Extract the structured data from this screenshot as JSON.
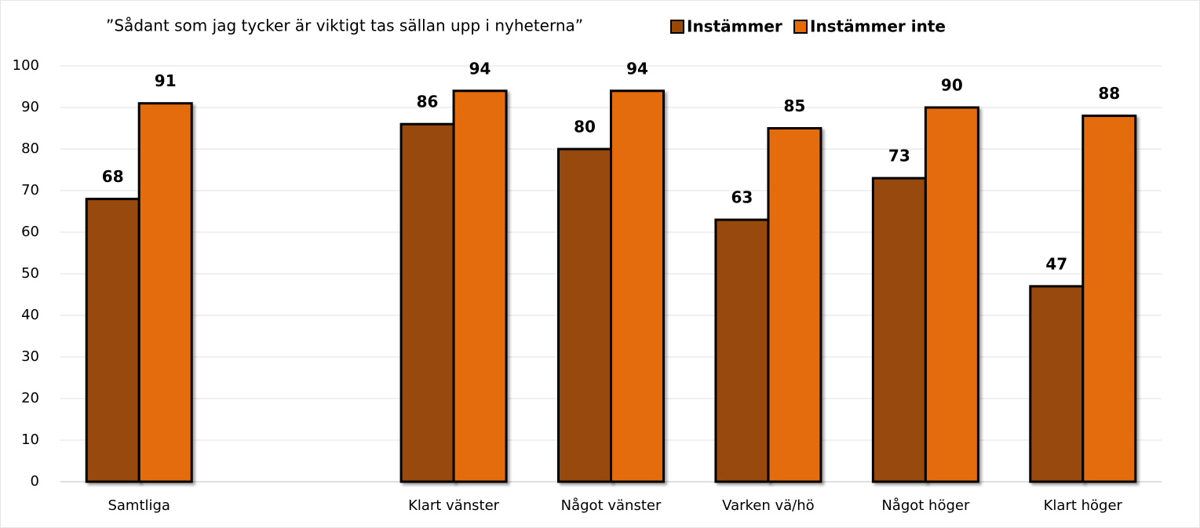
{
  "chart_data": {
    "type": "bar",
    "title": "”Sådant som jag tycker är viktigt tas sällan upp i nyheterna”",
    "categories": [
      "Samtliga",
      null,
      "Klart vänster",
      "Något vänster",
      "Varken vä/hö",
      "Något höger",
      "Klart höger"
    ],
    "series": [
      {
        "name": "Instämmer",
        "color": "#984807",
        "values": [
          68,
          null,
          86,
          80,
          63,
          73,
          47
        ]
      },
      {
        "name": "Instämmer inte",
        "color": "#e46c0a",
        "values": [
          91,
          null,
          94,
          94,
          85,
          90,
          88
        ]
      }
    ],
    "ylim": [
      0,
      100
    ],
    "yticks": [
      0,
      10,
      20,
      30,
      40,
      50,
      60,
      70,
      80,
      90,
      100
    ],
    "grid": true
  }
}
